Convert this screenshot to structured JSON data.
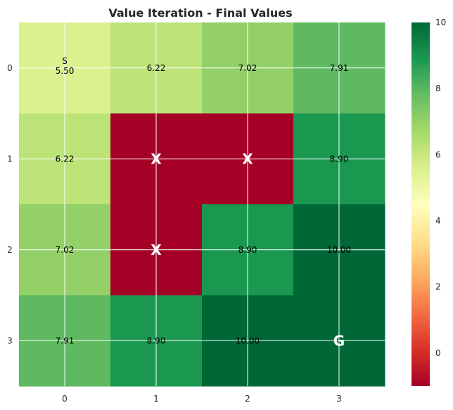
{
  "chart_data": {
    "type": "heatmap",
    "title": "Value Iteration - Final Values",
    "x_ticks": [
      "0",
      "1",
      "2",
      "3"
    ],
    "y_ticks": [
      "0",
      "1",
      "2",
      "3"
    ],
    "values": [
      [
        5.5,
        6.22,
        7.02,
        7.91
      ],
      [
        6.22,
        -1,
        -1,
        8.9
      ],
      [
        7.02,
        -1,
        8.9,
        10.0
      ],
      [
        7.91,
        8.9,
        10.0,
        10.0
      ]
    ],
    "cell_text": [
      [
        "5.50",
        "6.22",
        "7.02",
        "7.91"
      ],
      [
        "6.22",
        "",
        "",
        "8.90"
      ],
      [
        "7.02",
        "",
        "8.90",
        "10.00"
      ],
      [
        "7.91",
        "8.90",
        "10.00",
        ""
      ]
    ],
    "cell_marks": [
      [
        "S",
        "",
        "",
        ""
      ],
      [
        "",
        "X",
        "X",
        ""
      ],
      [
        "",
        "X",
        "",
        ""
      ],
      [
        "",
        "",
        "",
        "G"
      ]
    ],
    "colorbar": {
      "colormap": "RdYlGn",
      "vmin": -1,
      "vmax": 10,
      "ticks": [
        "0",
        "2",
        "4",
        "6",
        "8",
        "10"
      ],
      "tick_values": [
        0,
        2,
        4,
        6,
        8,
        10
      ]
    },
    "grid": true
  }
}
